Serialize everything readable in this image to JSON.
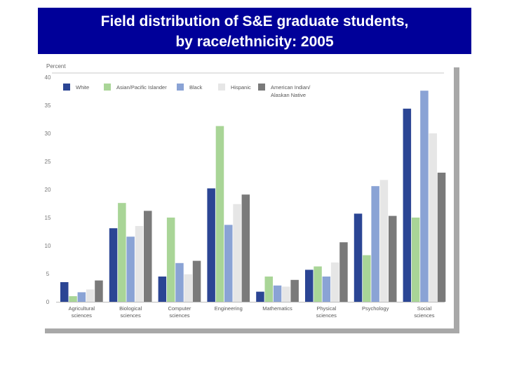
{
  "header": {
    "title_line1": "Field distribution of S&E graduate students,",
    "title_line2": "by race/ethnicity: 2005"
  },
  "colors": {
    "title_bg": "#000099",
    "title_text": "#ffffff",
    "series": [
      "#2b4594",
      "#a9d597",
      "#8aa3d5",
      "#e6e6e6",
      "#7a7a7a"
    ]
  },
  "chart_data": {
    "type": "bar",
    "ylabel": "Percent",
    "ylim": [
      0,
      40
    ],
    "yticks": [
      0,
      5,
      10,
      15,
      20,
      25,
      30,
      35,
      40
    ],
    "grid": false,
    "legend_position": "top",
    "categories": [
      [
        "Agricultural",
        "sciences"
      ],
      [
        "Biological",
        "sciences"
      ],
      [
        "Computer",
        "sciences"
      ],
      [
        "Engineering"
      ],
      [
        "Mathematics"
      ],
      [
        "Physical",
        "sciences"
      ],
      [
        "Psychology"
      ],
      [
        "Social",
        "sciences"
      ]
    ],
    "series": [
      {
        "name": [
          "White"
        ],
        "values": [
          3.5,
          13.1,
          4.5,
          20.2,
          1.8,
          5.7,
          15.7,
          34.4
        ]
      },
      {
        "name": [
          "Asian/Pacific Islander"
        ],
        "values": [
          1.0,
          17.6,
          15.0,
          31.3,
          4.5,
          6.3,
          8.3,
          15.0
        ]
      },
      {
        "name": [
          "Black"
        ],
        "values": [
          1.7,
          11.6,
          6.9,
          13.7,
          2.9,
          4.5,
          20.6,
          37.6
        ]
      },
      {
        "name": [
          "Hispanic"
        ],
        "values": [
          2.2,
          13.5,
          4.9,
          17.4,
          2.7,
          7.0,
          21.7,
          30.0
        ]
      },
      {
        "name": [
          "American Indian/",
          "Alaskan Native"
        ],
        "values": [
          3.8,
          16.2,
          7.3,
          19.1,
          3.9,
          10.6,
          15.3,
          23.0
        ]
      }
    ]
  }
}
